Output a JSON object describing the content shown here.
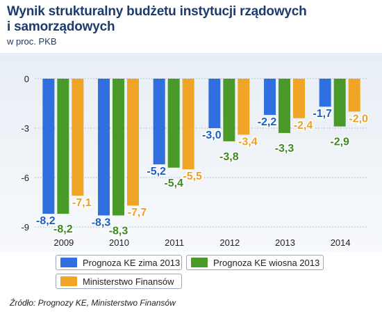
{
  "title_lines": [
    "Wynik strukturalny budżetu instytucji rządowych",
    "i samorządowych"
  ],
  "subtitle": "w proc. PKB",
  "source": "Źródło: Prognozy KE, Ministerstwo Finansów",
  "chart_data": {
    "type": "bar",
    "categories": [
      "2009",
      "2010",
      "2011",
      "2012",
      "2013",
      "2014"
    ],
    "series": [
      {
        "name": "Prognoza KE zima 2013",
        "values": [
          -8.2,
          -8.3,
          -5.2,
          -3.0,
          -2.2,
          -1.7
        ],
        "labels": [
          "-8,2",
          "-8,3",
          "-5,2",
          "-3,0",
          "-2,2",
          "-1,7"
        ],
        "color": "#2f6fe0",
        "label_color": "#1c5cc7"
      },
      {
        "name": "Prognoza KE wiosna 2013",
        "values": [
          -8.2,
          -8.3,
          -5.4,
          -3.8,
          -3.3,
          -2.9
        ],
        "labels": [
          "-8,2",
          "-8,3",
          "-5,4",
          "-3,8",
          "-3,3",
          "-2,9"
        ],
        "color": "#4a9a2a",
        "label_color": "#3d8a22"
      },
      {
        "name": "Ministerstwo Finansów",
        "values": [
          -7.1,
          -7.7,
          -5.5,
          -3.4,
          -2.4,
          -2.0
        ],
        "labels": [
          "-7,1",
          "-7,7",
          "-5,5",
          "-3,4",
          "-2,4",
          "-2,0"
        ],
        "color": "#f0a526",
        "label_color": "#f0a020"
      }
    ],
    "y_ticks": [
      0,
      -3,
      -6,
      -9
    ],
    "y_tick_labels": [
      "0",
      "-3",
      "-6",
      "-9"
    ],
    "ylim": [
      -9,
      0
    ],
    "grid": "horizontal dotted",
    "legend_position": "bottom"
  }
}
